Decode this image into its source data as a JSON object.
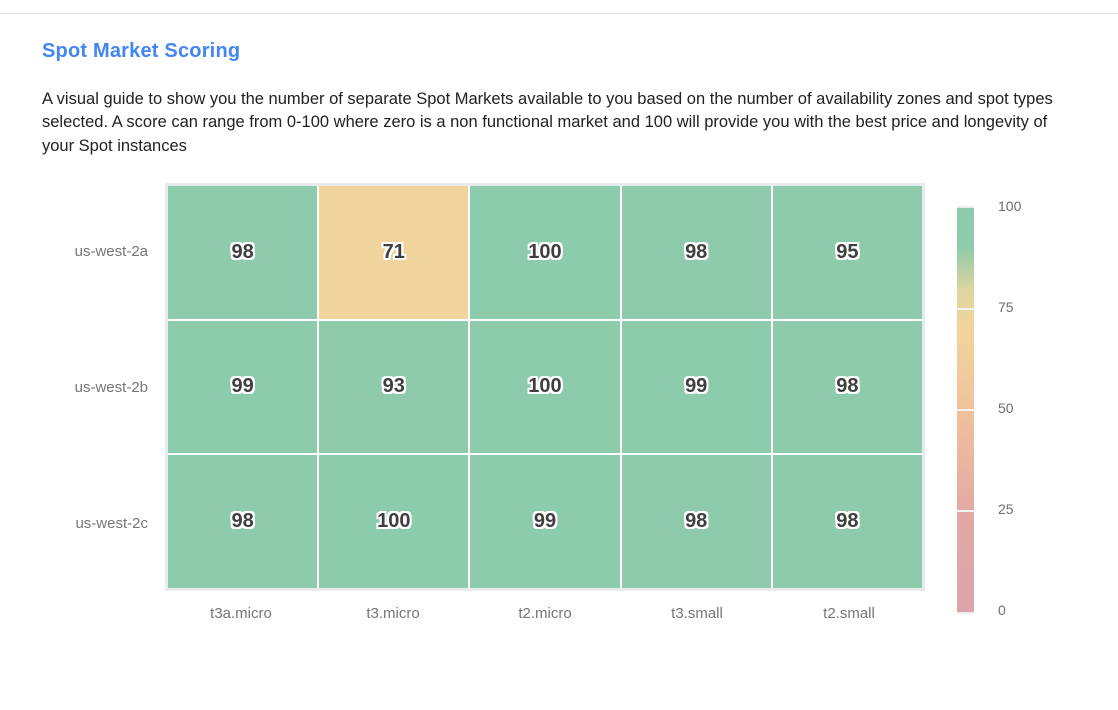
{
  "header": {
    "title": "Spot Market Scoring",
    "description": "A visual guide to show you the number of separate Spot Markets available to you based on the number of availability zones and spot types selected. A score can range from 0-100 where zero is a non functional market and 100 will provide you with the best price and longevity of your Spot instances"
  },
  "chart_data": {
    "type": "heatmap",
    "title": "Spot Market Scoring",
    "rows": [
      "us-west-2a",
      "us-west-2b",
      "us-west-2c"
    ],
    "columns": [
      "t3a.micro",
      "t3.micro",
      "t2.micro",
      "t3.small",
      "t2.small"
    ],
    "values": [
      [
        98,
        71,
        100,
        98,
        95
      ],
      [
        99,
        93,
        100,
        99,
        98
      ],
      [
        98,
        100,
        99,
        98,
        98
      ]
    ],
    "value_range": [
      0,
      100
    ],
    "colorbar": {
      "position": "right",
      "ticks": [
        100,
        75,
        50,
        25,
        0
      ]
    },
    "colorscale": [
      [
        0,
        "#DBA5A9"
      ],
      [
        25,
        "#E4A9A4"
      ],
      [
        50,
        "#EFC29C"
      ],
      [
        70,
        "#F2D49B"
      ],
      [
        80,
        "#DCD5A0"
      ],
      [
        90,
        "#90CBAB"
      ],
      [
        100,
        "#8CCBAC"
      ]
    ]
  },
  "colors": {
    "title_color": "#4285F4",
    "body_text": "#202124",
    "axis_label": "#767676",
    "cell_value": "#3F3F3F",
    "grid_gap": "#FFFFFF",
    "plot_border": "#E7EBEE",
    "divider": "#E2E2E2"
  }
}
